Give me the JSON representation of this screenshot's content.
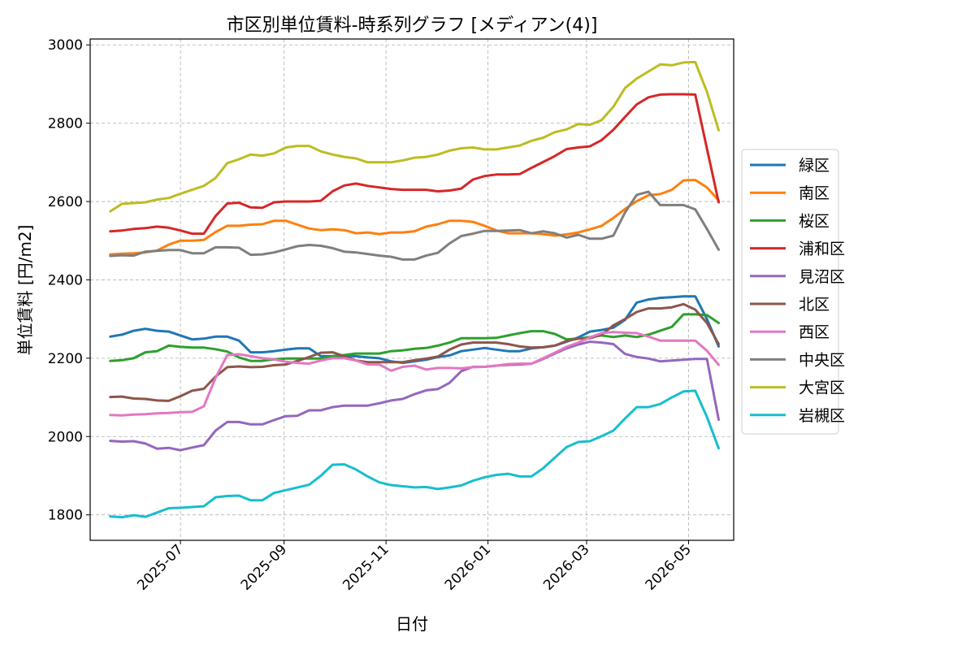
{
  "chart_data": {
    "type": "line",
    "title": "市区別単位賃料-時系列グラフ [メディアン(4)]",
    "xlabel": "日付",
    "ylabel": "単位賃料 [円/m2]",
    "x_type": "date",
    "xlim": [
      "2025-05-08",
      "2026-05-28"
    ],
    "ylim": [
      1735,
      3015
    ],
    "x_ticks": [
      "2025-07",
      "2025-09",
      "2025-11",
      "2026-01",
      "2026-03",
      "2026-05"
    ],
    "y_ticks": [
      1800,
      2000,
      2200,
      2400,
      2600,
      2800,
      3000
    ],
    "grid": true,
    "legend_position": "center right (outside)",
    "x": [
      "2025-05-20",
      "2025-05-27",
      "2025-06-03",
      "2025-06-10",
      "2025-06-17",
      "2025-06-24",
      "2025-07-01",
      "2025-07-08",
      "2025-07-15",
      "2025-07-22",
      "2025-07-29",
      "2025-08-05",
      "2025-08-12",
      "2025-08-19",
      "2025-08-26",
      "2025-09-02",
      "2025-09-09",
      "2025-09-16",
      "2025-09-23",
      "2025-09-30",
      "2025-10-07",
      "2025-10-14",
      "2025-10-21",
      "2025-10-28",
      "2025-11-04",
      "2025-11-11",
      "2025-11-18",
      "2025-11-25",
      "2025-12-02",
      "2025-12-09",
      "2025-12-16",
      "2025-12-23",
      "2025-12-30",
      "2026-01-06",
      "2026-01-13",
      "2026-01-20",
      "2026-01-27",
      "2026-02-03",
      "2026-02-10",
      "2026-02-17",
      "2026-02-24",
      "2026-03-03",
      "2026-03-10",
      "2026-03-17",
      "2026-03-24",
      "2026-03-31",
      "2026-04-07",
      "2026-04-14",
      "2026-04-21",
      "2026-04-28",
      "2026-05-05",
      "2026-05-12",
      "2026-05-19"
    ],
    "series": [
      {
        "name": "緑区",
        "color": "#1f77b4",
        "values": [
          2255,
          2260,
          2270,
          2275,
          2270,
          2268,
          2258,
          2248,
          2250,
          2255,
          2255,
          2245,
          2215,
          2215,
          2218,
          2222,
          2225,
          2225,
          2205,
          2205,
          2205,
          2205,
          2202,
          2200,
          2192,
          2188,
          2192,
          2196,
          2203,
          2207,
          2218,
          2222,
          2226,
          2222,
          2218,
          2218,
          2225,
          2228,
          2232,
          2242,
          2253,
          2268,
          2272,
          2278,
          2298,
          2342,
          2350,
          2354,
          2356,
          2358,
          2358,
          2300,
          2230
        ]
      },
      {
        "name": "南区",
        "color": "#ff7f0e",
        "values": [
          2465,
          2467,
          2468,
          2470,
          2475,
          2490,
          2500,
          2500,
          2502,
          2522,
          2538,
          2538,
          2541,
          2542,
          2551,
          2551,
          2541,
          2531,
          2527,
          2529,
          2527,
          2519,
          2521,
          2517,
          2521,
          2521,
          2524,
          2536,
          2542,
          2551,
          2551,
          2548,
          2538,
          2526,
          2519,
          2519,
          2519,
          2517,
          2513,
          2516,
          2521,
          2529,
          2538,
          2558,
          2581,
          2601,
          2616,
          2619,
          2630,
          2654,
          2655,
          2636,
          2603
        ]
      },
      {
        "name": "桜区",
        "color": "#2ca02c",
        "values": [
          2193,
          2195,
          2200,
          2215,
          2218,
          2232,
          2229,
          2227,
          2227,
          2223,
          2217,
          2202,
          2193,
          2193,
          2197,
          2199,
          2199,
          2199,
          2199,
          2205,
          2208,
          2212,
          2212,
          2212,
          2218,
          2220,
          2224,
          2226,
          2232,
          2240,
          2251,
          2251,
          2251,
          2252,
          2258,
          2264,
          2269,
          2269,
          2262,
          2248,
          2250,
          2254,
          2258,
          2254,
          2258,
          2254,
          2260,
          2270,
          2280,
          2312,
          2312,
          2310,
          2290
        ]
      },
      {
        "name": "浦和区",
        "color": "#d62728",
        "values": [
          2524,
          2526,
          2530,
          2532,
          2536,
          2533,
          2526,
          2518,
          2518,
          2563,
          2595,
          2597,
          2585,
          2584,
          2598,
          2600,
          2600,
          2600,
          2602,
          2626,
          2641,
          2646,
          2640,
          2636,
          2632,
          2630,
          2630,
          2630,
          2626,
          2628,
          2633,
          2656,
          2665,
          2669,
          2669,
          2670,
          2686,
          2701,
          2716,
          2734,
          2738,
          2741,
          2757,
          2783,
          2816,
          2848,
          2866,
          2873,
          2874,
          2874,
          2873,
          2735,
          2598
        ]
      },
      {
        "name": "見沼区",
        "color": "#9467bd",
        "values": [
          1989,
          1987,
          1988,
          1982,
          1969,
          1971,
          1965,
          1972,
          1978,
          2015,
          2037,
          2037,
          2031,
          2031,
          2042,
          2052,
          2053,
          2067,
          2067,
          2075,
          2079,
          2079,
          2079,
          2085,
          2092,
          2096,
          2108,
          2118,
          2121,
          2137,
          2167,
          2178,
          2178,
          2181,
          2183,
          2184,
          2186,
          2198,
          2212,
          2225,
          2235,
          2242,
          2240,
          2236,
          2211,
          2203,
          2199,
          2192,
          2194,
          2196,
          2198,
          2198,
          2043
        ]
      },
      {
        "name": "北区",
        "color": "#8c564b",
        "values": [
          2101,
          2102,
          2097,
          2096,
          2092,
          2091,
          2103,
          2117,
          2122,
          2153,
          2177,
          2179,
          2177,
          2178,
          2182,
          2184,
          2193,
          2203,
          2214,
          2215,
          2205,
          2194,
          2190,
          2190,
          2190,
          2190,
          2195,
          2199,
          2204,
          2222,
          2235,
          2240,
          2240,
          2240,
          2236,
          2230,
          2227,
          2228,
          2232,
          2244,
          2250,
          2251,
          2260,
          2284,
          2300,
          2318,
          2327,
          2327,
          2330,
          2338,
          2324,
          2290,
          2236
        ]
      },
      {
        "name": "西区",
        "color": "#e377c2",
        "values": [
          2055,
          2054,
          2056,
          2057,
          2059,
          2060,
          2062,
          2063,
          2077,
          2150,
          2208,
          2210,
          2205,
          2200,
          2197,
          2191,
          2188,
          2186,
          2194,
          2200,
          2200,
          2194,
          2184,
          2184,
          2168,
          2178,
          2181,
          2171,
          2175,
          2175,
          2174,
          2177,
          2178,
          2181,
          2185,
          2186,
          2186,
          2200,
          2214,
          2229,
          2240,
          2253,
          2264,
          2267,
          2265,
          2264,
          2255,
          2245,
          2245,
          2245,
          2245,
          2219,
          2183
        ]
      },
      {
        "name": "中央区",
        "color": "#7f7f7f",
        "values": [
          2461,
          2463,
          2462,
          2472,
          2474,
          2476,
          2476,
          2468,
          2468,
          2483,
          2483,
          2482,
          2464,
          2465,
          2470,
          2478,
          2486,
          2489,
          2487,
          2481,
          2472,
          2470,
          2466,
          2462,
          2459,
          2452,
          2452,
          2462,
          2469,
          2493,
          2512,
          2518,
          2525,
          2525,
          2526,
          2527,
          2519,
          2524,
          2519,
          2508,
          2515,
          2505,
          2505,
          2513,
          2572,
          2617,
          2625,
          2591,
          2591,
          2591,
          2580,
          2530,
          2477
        ]
      },
      {
        "name": "大宮区",
        "color": "#bcbd22",
        "values": [
          2575,
          2594,
          2596,
          2598,
          2605,
          2609,
          2620,
          2630,
          2640,
          2660,
          2698,
          2708,
          2720,
          2717,
          2723,
          2738,
          2742,
          2742,
          2728,
          2720,
          2714,
          2710,
          2700,
          2700,
          2700,
          2705,
          2712,
          2714,
          2720,
          2730,
          2736,
          2738,
          2733,
          2733,
          2738,
          2743,
          2755,
          2763,
          2777,
          2784,
          2798,
          2796,
          2808,
          2842,
          2890,
          2914,
          2932,
          2950,
          2948,
          2955,
          2956,
          2880,
          2782
        ]
      },
      {
        "name": "岩槻区",
        "color": "#17becf",
        "values": [
          1796,
          1794,
          1799,
          1795,
          1806,
          1817,
          1818,
          1820,
          1822,
          1845,
          1848,
          1849,
          1837,
          1837,
          1856,
          1863,
          1870,
          1877,
          1900,
          1928,
          1929,
          1916,
          1898,
          1883,
          1876,
          1873,
          1870,
          1871,
          1866,
          1870,
          1875,
          1887,
          1896,
          1902,
          1905,
          1898,
          1898,
          1919,
          1946,
          1973,
          1986,
          1988,
          2001,
          2015,
          2046,
          2075,
          2075,
          2083,
          2100,
          2115,
          2117,
          2050,
          1970
        ]
      }
    ]
  }
}
